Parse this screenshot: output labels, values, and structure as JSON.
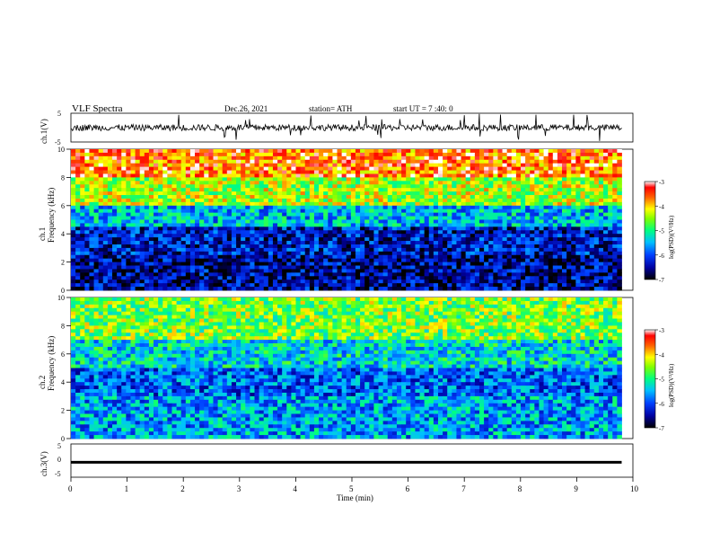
{
  "header": {
    "title": "VLF Spectra",
    "date": "Dec.26, 2021",
    "station": "station= ATH",
    "start_ut": "start UT =  7 :40: 0"
  },
  "chart_data": [
    {
      "type": "line",
      "name": "ch1-waveform",
      "ylabel": "ch.1(V)",
      "ylim": [
        -5,
        5
      ],
      "yticks": [
        "5",
        "-5"
      ],
      "xlim": [
        0,
        10
      ],
      "data_extent_min": [
        0,
        9.8
      ],
      "trace": "noisy waveform centered near 0 V with occasional spikes reaching about +/-5 V"
    },
    {
      "type": "heatmap",
      "name": "ch1-spectrogram",
      "ylabel": "ch.1 Frequency (kHz)",
      "ylim": [
        0,
        10
      ],
      "yticks": [
        "0",
        "2",
        "4",
        "6",
        "8",
        "10"
      ],
      "xlim": [
        0,
        10
      ],
      "colorbar": {
        "label": "log(PSD)(V²/Hz)",
        "range": [
          -7,
          -3
        ],
        "ticks": [
          "-3",
          "-4",
          "-5",
          "-6",
          "-7"
        ]
      },
      "description_levels": [
        {
          "freq_khz": [
            8,
            10
          ],
          "log_psd": -3.6
        },
        {
          "freq_khz": [
            6,
            8
          ],
          "log_psd": -4.4
        },
        {
          "freq_khz": [
            4.5,
            6
          ],
          "log_psd": -5.5
        },
        {
          "freq_khz": [
            2.5,
            4.5
          ],
          "log_psd": -6.3
        },
        {
          "freq_khz": [
            0,
            2.5
          ],
          "log_psd": -6.5
        }
      ]
    },
    {
      "type": "heatmap",
      "name": "ch2-spectrogram",
      "ylabel": "ch.2 Frequency (kHz)",
      "ylim": [
        0,
        10
      ],
      "yticks": [
        "0",
        "2",
        "4",
        "6",
        "8",
        "10"
      ],
      "xlim": [
        0,
        10
      ],
      "colorbar": {
        "label": "log(PSD)(V²/Hz)",
        "range": [
          -7,
          -3
        ],
        "ticks": [
          "-3",
          "-4",
          "-5",
          "-6",
          "-7"
        ]
      },
      "description_levels": [
        {
          "freq_khz": [
            7,
            10
          ],
          "log_psd": -4.6
        },
        {
          "freq_khz": [
            5,
            7
          ],
          "log_psd": -5.3
        },
        {
          "freq_khz": [
            3,
            5
          ],
          "log_psd": -5.9
        },
        {
          "freq_khz": [
            0,
            3
          ],
          "log_psd": -5.6
        }
      ]
    },
    {
      "type": "line",
      "name": "ch3-waveform",
      "ylabel": "ch.3(V)",
      "ylim": [
        -5,
        5
      ],
      "yticks": [
        "5",
        "0",
        "-5"
      ],
      "xlim": [
        0,
        10
      ],
      "data_extent_min": [
        0,
        9.8
      ],
      "trace": "flat signal near -0.5 V"
    }
  ],
  "x_axis": {
    "label": "Time (min)",
    "ticks": [
      "0",
      "1",
      "2",
      "3",
      "4",
      "5",
      "6",
      "7",
      "8",
      "9",
      "10"
    ],
    "range": [
      0,
      10
    ]
  }
}
